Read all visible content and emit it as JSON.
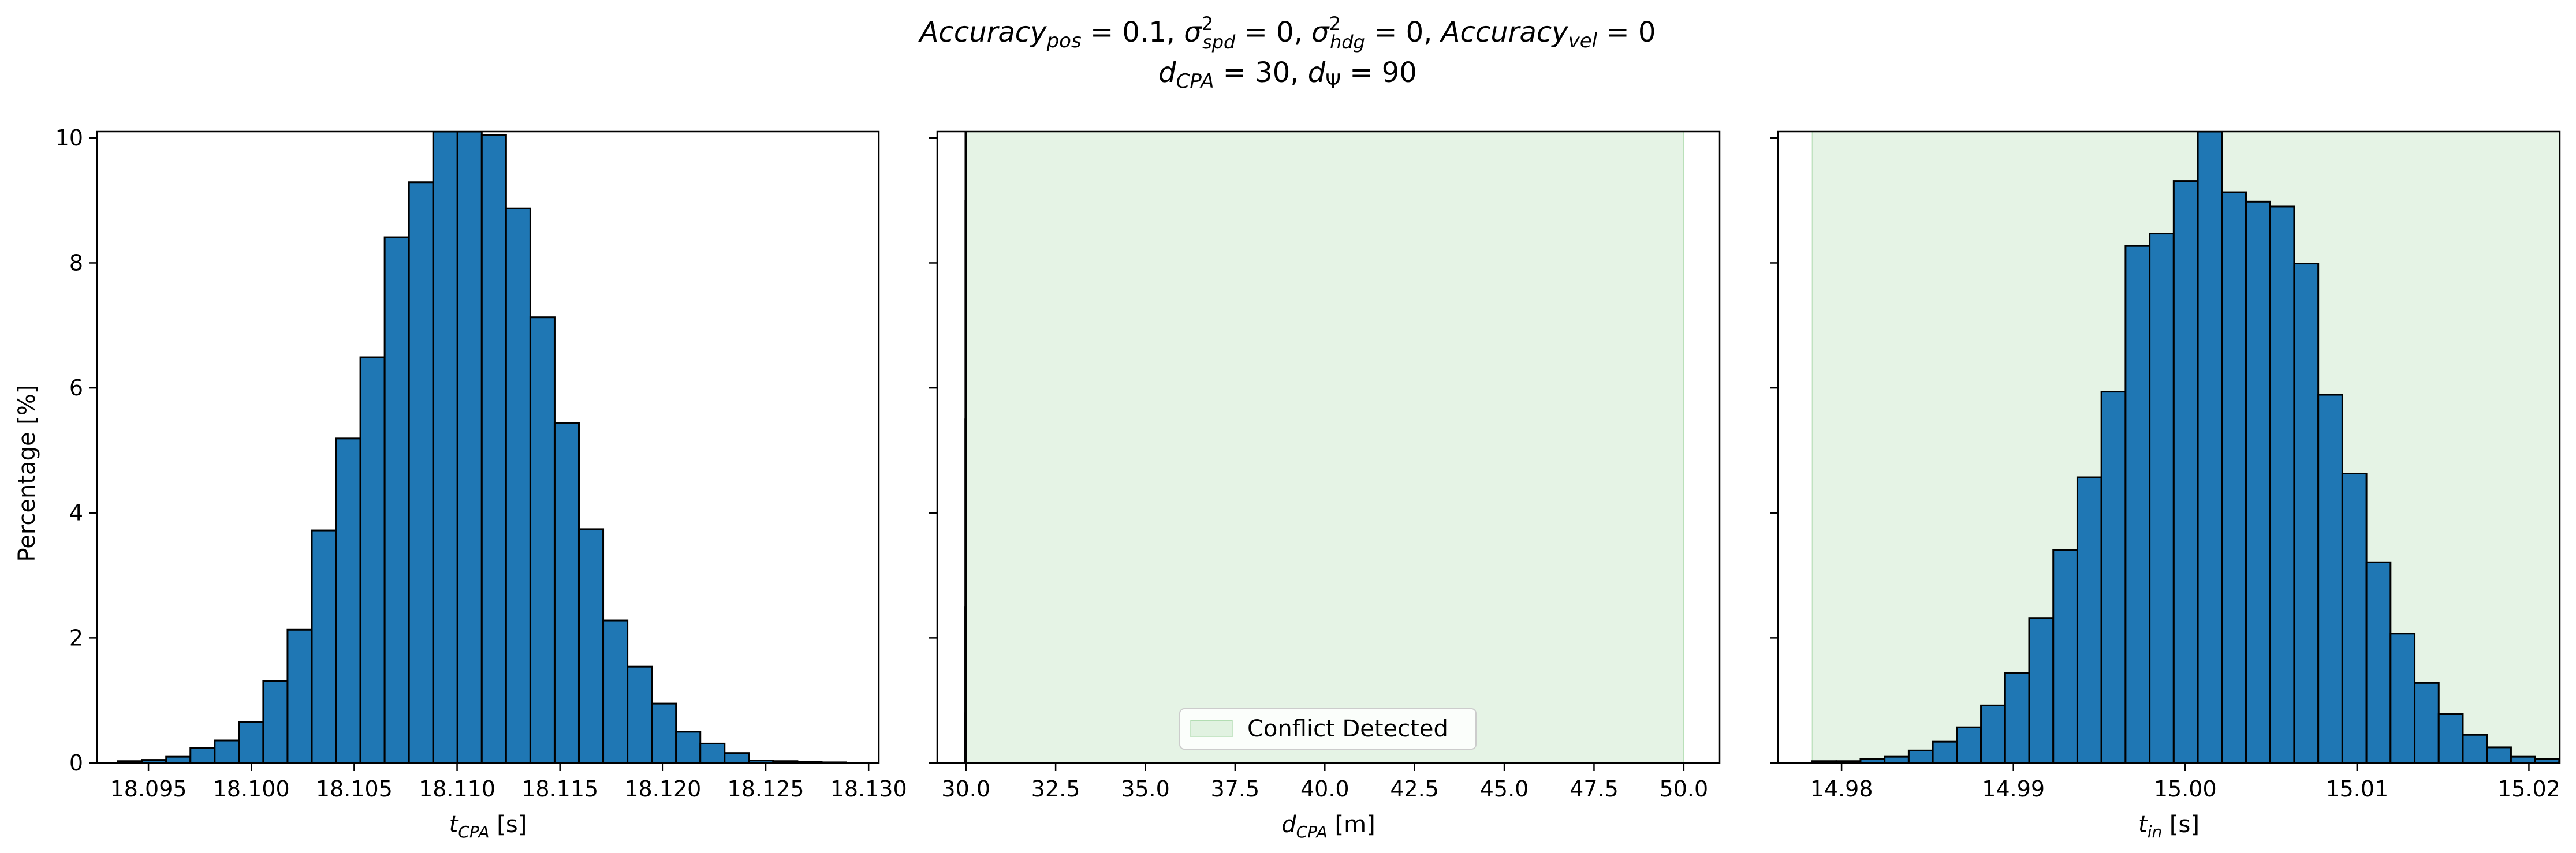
{
  "figure": {
    "title_line1_parts": [
      "Accuracy",
      "pos",
      " = 0.1, ",
      "σ",
      "2",
      "spd",
      " = 0, ",
      "σ",
      "2",
      "hdg",
      " = 0, ",
      "Accuracy",
      "vel",
      " = 0"
    ],
    "title_line2_parts": [
      "d",
      "CPA",
      " = 30, ",
      "d",
      "Ψ",
      " = 90"
    ]
  },
  "colors": {
    "bar_fill": "#1f77b4",
    "bar_edge": "#000000",
    "conflict_fill": "#2ca02c"
  },
  "chart_data": [
    {
      "type": "bar",
      "name": "t_cpa_histogram",
      "xlabel_main": "t",
      "xlabel_sub": "CPA",
      "xlabel_unit": " [s]",
      "ylabel": "Percentage [%]",
      "xlim": [
        18.0925,
        18.1305
      ],
      "ylim": [
        0,
        10.1
      ],
      "xticks": [
        18.095,
        18.1,
        18.105,
        18.11,
        18.115,
        18.12,
        18.125,
        18.13
      ],
      "xtick_labels": [
        "18.095",
        "18.100",
        "18.105",
        "18.110",
        "18.115",
        "18.120",
        "18.125",
        "18.130"
      ],
      "yticks": [
        0,
        2,
        4,
        6,
        8,
        10
      ],
      "ytick_labels": [
        "0",
        "2",
        "4",
        "6",
        "8",
        "10"
      ],
      "bin_start": 18.0935,
      "bin_width": 0.00118,
      "values": [
        0.03,
        0.05,
        0.1,
        0.24,
        0.36,
        0.66,
        1.31,
        2.13,
        3.72,
        5.19,
        6.49,
        8.41,
        9.29,
        10.1,
        10.1,
        10.04,
        8.87,
        7.13,
        5.44,
        3.74,
        2.28,
        1.54,
        0.95,
        0.5,
        0.31,
        0.16,
        0.04,
        0.03,
        0.02,
        0.01
      ]
    },
    {
      "type": "bar",
      "name": "d_cpa_histogram",
      "xlabel_main": "d",
      "xlabel_sub": "CPA",
      "xlabel_unit": " [m]",
      "xlim": [
        29.2,
        51.0
      ],
      "ylim": [
        0,
        10.1
      ],
      "xticks": [
        30.0,
        32.5,
        35.0,
        37.5,
        40.0,
        42.5,
        45.0,
        47.5,
        50.0
      ],
      "xtick_labels": [
        "30.0",
        "32.5",
        "35.0",
        "37.5",
        "40.0",
        "42.5",
        "45.0",
        "47.5",
        "50.0"
      ],
      "yticks": [
        0,
        2,
        4,
        6,
        8,
        10
      ],
      "conflict_region": [
        30.0,
        50.0
      ],
      "legend_label": "Conflict Detected",
      "legend_position": "lower-center",
      "bin_start": 29.97,
      "bin_width": 0.002,
      "values": [
        0.2,
        0.8,
        2.5,
        5.5,
        9.0,
        10.1,
        10.1,
        10.1,
        10.1,
        10.1,
        10.1,
        10.1,
        10.1,
        10.1,
        10.1,
        10.1,
        9.0,
        5.5,
        2.5,
        0.8,
        0.2
      ]
    },
    {
      "type": "bar",
      "name": "t_in_histogram",
      "xlabel_main": "t",
      "xlabel_sub": "in",
      "xlabel_unit": " [s]",
      "xlim": [
        14.9763,
        15.0218
      ],
      "ylim": [
        0,
        10.1
      ],
      "xticks": [
        14.98,
        14.99,
        15.0,
        15.01,
        15.02
      ],
      "xtick_labels": [
        "14.98",
        "14.99",
        "15.00",
        "15.01",
        "15.02"
      ],
      "yticks": [
        0,
        2,
        4,
        6,
        8,
        10
      ],
      "conflict_region": [
        14.9783,
        15.0218
      ],
      "bin_start": 14.9783,
      "bin_width": 0.001402,
      "values": [
        0.03,
        0.03,
        0.06,
        0.1,
        0.2,
        0.34,
        0.57,
        0.92,
        1.44,
        2.32,
        3.41,
        4.57,
        5.94,
        8.27,
        8.47,
        9.31,
        10.1,
        9.13,
        8.98,
        8.9,
        7.99,
        5.89,
        4.63,
        3.21,
        2.07,
        1.28,
        0.78,
        0.45,
        0.25,
        0.1,
        0.06,
        0.02
      ]
    }
  ]
}
